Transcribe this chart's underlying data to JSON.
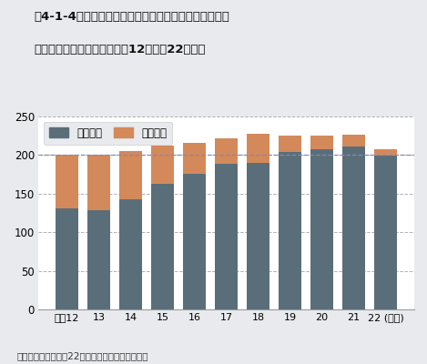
{
  "years": [
    "平成12",
    "13",
    "14",
    "15",
    "16",
    "17",
    "18",
    "19",
    "20",
    "21",
    "22 (年度)"
  ],
  "achieved": [
    131,
    129,
    143,
    163,
    176,
    189,
    190,
    204,
    207,
    211,
    199
  ],
  "total": [
    200,
    200,
    205,
    212,
    216,
    222,
    228,
    225,
    225,
    226,
    207
  ],
  "achieved_color": "#5a6e7a",
  "remainder_color": "#d4895a",
  "title_line1": "围4-1-4　対策地域における二酸化窒素の環境基準達成",
  "title_line2": "状況の推移（自排局）（平成12年度～22年度）",
  "legend_achieved": "達成局数",
  "legend_total": "有効局数",
  "ylabel_max": 250,
  "yticks": [
    0,
    50,
    100,
    150,
    200,
    250
  ],
  "source": "出典：環境省「平成22年度大気汚染状況報告書」",
  "dashed_line_y": 200,
  "background_color": "#e8eaed",
  "plot_background": "#ffffff"
}
